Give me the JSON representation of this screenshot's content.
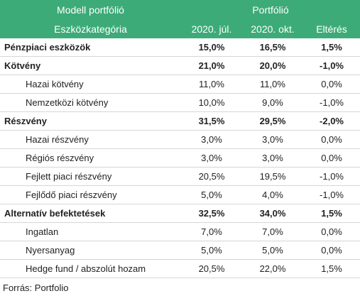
{
  "header": {
    "model_title": "Modell portfólió",
    "portfolio_title": "Portfólió",
    "columns": [
      "Eszközkategória",
      "2020. júl.",
      "2020. okt.",
      "Eltérés"
    ]
  },
  "groups": [
    {
      "label": "Pénzpiaci eszközök",
      "values": [
        "15,0%",
        "16,5%",
        "1,5%"
      ],
      "children": []
    },
    {
      "label": "Kötvény",
      "values": [
        "21,0%",
        "20,0%",
        "-1,0%"
      ],
      "children": [
        {
          "label": "Hazai kötvény",
          "values": [
            "11,0%",
            "11,0%",
            "0,0%"
          ]
        },
        {
          "label": "Nemzetközi kötvény",
          "values": [
            "10,0%",
            "9,0%",
            "-1,0%"
          ]
        }
      ]
    },
    {
      "label": "Részvény",
      "values": [
        "31,5%",
        "29,5%",
        "-2,0%"
      ],
      "children": [
        {
          "label": "Hazai részvény",
          "values": [
            "3,0%",
            "3,0%",
            "0,0%"
          ]
        },
        {
          "label": "Régiós részvény",
          "values": [
            "3,0%",
            "3,0%",
            "0,0%"
          ]
        },
        {
          "label": "Fejlett piaci részvény",
          "values": [
            "20,5%",
            "19,5%",
            "-1,0%"
          ]
        },
        {
          "label": "Fejlődő piaci részvény",
          "values": [
            "5,0%",
            "4,0%",
            "-1,0%"
          ]
        }
      ]
    },
    {
      "label": "Alternatív befektetések",
      "values": [
        "32,5%",
        "34,0%",
        "1,5%"
      ],
      "children": [
        {
          "label": "Ingatlan",
          "values": [
            "7,0%",
            "7,0%",
            "0,0%"
          ]
        },
        {
          "label": "Nyersanyag",
          "values": [
            "5,0%",
            "5,0%",
            "0,0%"
          ]
        },
        {
          "label": "Hedge fund / abszolút hozam",
          "values": [
            "20,5%",
            "22,0%",
            "1,5%"
          ]
        }
      ]
    }
  ],
  "footer": "Forrás: Portfolio"
}
